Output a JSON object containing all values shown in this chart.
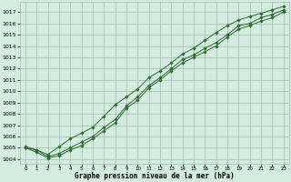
{
  "x": [
    0,
    1,
    2,
    3,
    4,
    5,
    6,
    7,
    8,
    9,
    10,
    11,
    12,
    13,
    14,
    15,
    16,
    17,
    18,
    19,
    20,
    21,
    22,
    23
  ],
  "y_main": [
    1005.0,
    1004.8,
    1004.2,
    1004.5,
    1005.0,
    1005.5,
    1006.0,
    1006.8,
    1007.5,
    1008.7,
    1009.5,
    1010.5,
    1011.2,
    1012.0,
    1012.8,
    1013.2,
    1013.8,
    1014.3,
    1015.0,
    1015.8,
    1016.0,
    1016.5,
    1016.8,
    1017.2
  ],
  "y_low": [
    1005.0,
    1004.6,
    1004.1,
    1004.3,
    1004.8,
    1005.2,
    1005.8,
    1006.5,
    1007.2,
    1008.5,
    1009.2,
    1010.3,
    1011.0,
    1011.8,
    1012.5,
    1013.0,
    1013.5,
    1014.0,
    1014.8,
    1015.5,
    1015.8,
    1016.2,
    1016.5,
    1017.0
  ],
  "y_high": [
    1005.1,
    1004.8,
    1004.4,
    1005.1,
    1005.8,
    1006.3,
    1006.8,
    1007.8,
    1008.8,
    1009.5,
    1010.2,
    1011.2,
    1011.8,
    1012.5,
    1013.3,
    1013.8,
    1014.5,
    1015.2,
    1015.8,
    1016.3,
    1016.6,
    1016.9,
    1017.2,
    1017.5
  ],
  "line_color": "#2d6a2d",
  "bg_color": "#d4ece0",
  "grid_color": "#9abfaa",
  "ylabel_ticks": [
    1004,
    1005,
    1006,
    1007,
    1008,
    1009,
    1010,
    1011,
    1012,
    1013,
    1014,
    1015,
    1016,
    1017
  ],
  "ylim": [
    1003.6,
    1017.9
  ],
  "xlim": [
    -0.5,
    23.5
  ],
  "xlabel": "Graphe pression niveau de la mer (hPa)",
  "marker": "D",
  "markersize": 1.8,
  "linewidth": 0.7
}
